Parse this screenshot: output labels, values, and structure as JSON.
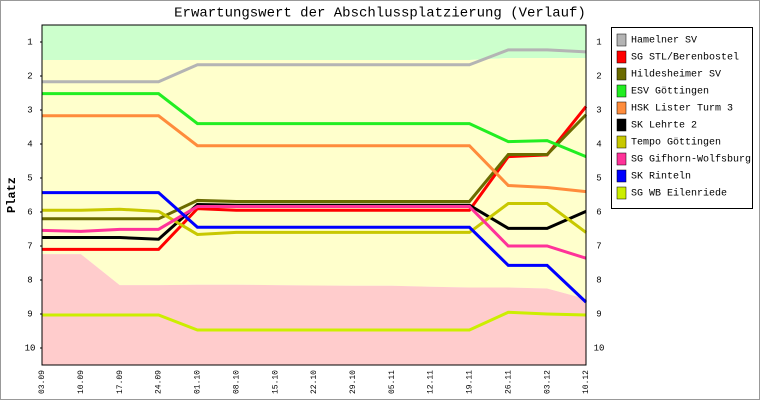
{
  "chart_data": {
    "type": "line",
    "title": "Erwartungswert der Abschlussplatzierung (Verlauf)",
    "y_label": "Platz",
    "categories": [
      "03.09",
      "10.09",
      "17.09",
      "24.09",
      "01.10",
      "08.10",
      "15.10",
      "22.10",
      "29.10",
      "05.11",
      "12.11",
      "19.11",
      "26.11",
      "03.12",
      "10.12"
    ],
    "ylim": [
      0.5,
      10.5
    ],
    "y_reversed": true,
    "yticks": [
      1,
      2,
      3,
      4,
      5,
      6,
      7,
      8,
      9,
      10
    ],
    "zone_colors": [
      "#ccffcc",
      "#ffffcc",
      "#ffcccc"
    ],
    "zone_bounds": [
      [
        1.53,
        1.53,
        1.53,
        1.53,
        1.53,
        1.53,
        1.53,
        1.53,
        1.53,
        1.53,
        1.53,
        1.53,
        1.47,
        1.47,
        1.47
      ],
      [
        7.24,
        7.24,
        8.15,
        8.15,
        8.14,
        8.14,
        8.15,
        8.16,
        8.17,
        8.17,
        8.2,
        8.22,
        8.22,
        8.25,
        8.56
      ]
    ],
    "series": [
      {
        "name": "Hamelner SV",
        "color": "#b4b4b4",
        "values": [
          2.17,
          2.17,
          2.17,
          2.17,
          1.67,
          1.67,
          1.67,
          1.67,
          1.67,
          1.67,
          1.67,
          1.67,
          1.23,
          1.23,
          1.29
        ]
      },
      {
        "name": "SG STL/Berenbostel",
        "color": "#ff0000",
        "values": [
          7.1,
          7.1,
          7.1,
          7.1,
          5.9,
          5.95,
          5.95,
          5.95,
          5.95,
          5.95,
          5.95,
          5.95,
          4.37,
          4.32,
          2.9
        ]
      },
      {
        "name": "Hildesheimer SV",
        "color": "#6b6b00",
        "values": [
          6.2,
          6.2,
          6.2,
          6.2,
          5.66,
          5.69,
          5.69,
          5.69,
          5.69,
          5.69,
          5.69,
          5.69,
          4.31,
          4.31,
          3.14
        ]
      },
      {
        "name": "ESV Göttingen",
        "color": "#22ee22",
        "values": [
          2.52,
          2.52,
          2.52,
          2.52,
          3.4,
          3.4,
          3.4,
          3.4,
          3.4,
          3.4,
          3.4,
          3.4,
          3.93,
          3.9,
          4.37
        ]
      },
      {
        "name": "HSK Lister Turm 3",
        "color": "#ff8c3c",
        "values": [
          3.17,
          3.17,
          3.17,
          3.17,
          4.05,
          4.05,
          4.05,
          4.05,
          4.05,
          4.05,
          4.05,
          4.05,
          5.22,
          5.28,
          5.4
        ]
      },
      {
        "name": "SK Lehrte 2",
        "color": "#000000",
        "values": [
          6.75,
          6.75,
          6.75,
          6.8,
          5.78,
          5.8,
          5.8,
          5.8,
          5.8,
          5.8,
          5.8,
          5.8,
          6.48,
          6.48,
          5.98
        ]
      },
      {
        "name": "Tempo Göttingen",
        "color": "#c8c800",
        "values": [
          5.95,
          5.95,
          5.92,
          5.98,
          6.66,
          6.6,
          6.6,
          6.6,
          6.6,
          6.6,
          6.6,
          6.6,
          5.75,
          5.75,
          6.6
        ]
      },
      {
        "name": "SG Gifhorn-Wolfsburg",
        "color": "#ff3399",
        "values": [
          6.54,
          6.57,
          6.51,
          6.51,
          5.84,
          5.84,
          5.84,
          5.84,
          5.84,
          5.84,
          5.84,
          5.84,
          7.0,
          7.0,
          7.36
        ]
      },
      {
        "name": "SK Rinteln",
        "color": "#0000ff",
        "values": [
          5.43,
          5.43,
          5.43,
          5.43,
          6.45,
          6.45,
          6.45,
          6.45,
          6.45,
          6.45,
          6.45,
          6.45,
          7.57,
          7.57,
          8.65
        ]
      },
      {
        "name": "SG WB Eilenriede",
        "color": "#ccee00",
        "values": [
          9.03,
          9.03,
          9.03,
          9.03,
          9.47,
          9.47,
          9.47,
          9.47,
          9.47,
          9.47,
          9.47,
          9.47,
          8.95,
          9.0,
          9.03
        ]
      }
    ]
  }
}
